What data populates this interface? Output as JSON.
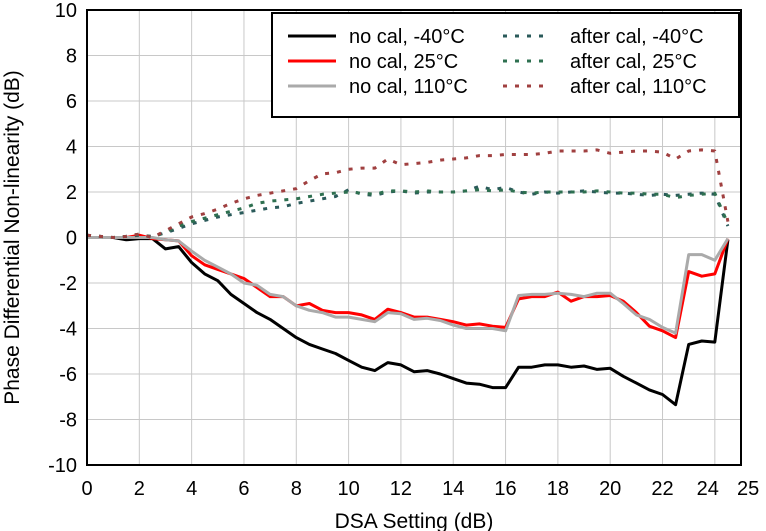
{
  "chart_data": {
    "type": "line",
    "xlabel": "DSA Setting (dB)",
    "ylabel": "Phase Differential Non-linearity (dB)",
    "xlim": [
      0,
      25
    ],
    "ylim": [
      -10,
      10
    ],
    "xticks": [
      0,
      2,
      4,
      6,
      8,
      10,
      12,
      14,
      16,
      18,
      20,
      22,
      24,
      25
    ],
    "xtick_labels": [
      "0",
      "2",
      "4",
      "6",
      "8",
      "10",
      "12",
      "14",
      "16",
      "18",
      "20",
      "22",
      "24",
      "25"
    ],
    "yticks": [
      -10,
      -8,
      -6,
      -4,
      -2,
      0,
      2,
      4,
      6,
      8,
      10
    ],
    "ytick_labels": [
      "-10",
      "-8",
      "-6",
      "-4",
      "-2",
      "0",
      "2",
      "4",
      "6",
      "8",
      "10"
    ],
    "grid": true,
    "legend_position": "top-right",
    "x": [
      0,
      0.5,
      1,
      1.5,
      2,
      2.5,
      3,
      3.5,
      4,
      4.5,
      5,
      5.5,
      6,
      6.5,
      7,
      7.5,
      8,
      8.5,
      9,
      9.5,
      10,
      10.5,
      11,
      11.5,
      12,
      12.5,
      13,
      13.5,
      14,
      14.5,
      15,
      15.5,
      16,
      16.5,
      17,
      17.5,
      18,
      18.5,
      19,
      19.5,
      20,
      20.5,
      21,
      21.5,
      22,
      22.5,
      23,
      23.5,
      24,
      24.5
    ],
    "series": [
      {
        "name": "no cal, -40°C",
        "color": "#000000",
        "style": "solid",
        "values": [
          0,
          0,
          0,
          -0.1,
          -0.05,
          -0.05,
          -0.5,
          -0.4,
          -1.1,
          -1.6,
          -1.9,
          -2.5,
          -2.9,
          -3.3,
          -3.6,
          -4.0,
          -4.4,
          -4.7,
          -4.9,
          -5.1,
          -5.4,
          -5.7,
          -5.85,
          -5.5,
          -5.6,
          -5.9,
          -5.85,
          -6.0,
          -6.2,
          -6.4,
          -6.45,
          -6.6,
          -6.6,
          -5.7,
          -5.7,
          -5.6,
          -5.6,
          -5.7,
          -5.65,
          -5.8,
          -5.75,
          -6.1,
          -6.4,
          -6.7,
          -6.9,
          -7.35,
          -4.7,
          -4.55,
          -4.6,
          -0.1
        ]
      },
      {
        "name": "no cal, 25°C",
        "color": "#ff0000",
        "style": "solid",
        "values": [
          0,
          0,
          0,
          0,
          0.1,
          -0.05,
          -0.1,
          -0.15,
          -0.8,
          -1.2,
          -1.4,
          -1.6,
          -1.8,
          -2.2,
          -2.6,
          -2.6,
          -3.0,
          -2.9,
          -3.2,
          -3.3,
          -3.3,
          -3.4,
          -3.6,
          -3.15,
          -3.3,
          -3.5,
          -3.5,
          -3.6,
          -3.7,
          -3.85,
          -3.8,
          -3.9,
          -3.95,
          -2.7,
          -2.6,
          -2.6,
          -2.4,
          -2.8,
          -2.6,
          -2.6,
          -2.55,
          -2.8,
          -3.3,
          -3.9,
          -4.1,
          -4.4,
          -1.5,
          -1.7,
          -1.6,
          -0.05
        ]
      },
      {
        "name": "no cal, 110°C",
        "color": "#aaaaaa",
        "style": "solid",
        "values": [
          0,
          0,
          0,
          0,
          0,
          0,
          -0.1,
          -0.15,
          -0.6,
          -1.0,
          -1.3,
          -1.6,
          -2.0,
          -2.1,
          -2.5,
          -2.6,
          -3.0,
          -3.2,
          -3.3,
          -3.5,
          -3.5,
          -3.6,
          -3.7,
          -3.3,
          -3.35,
          -3.6,
          -3.55,
          -3.65,
          -3.85,
          -4.0,
          -4.0,
          -4.0,
          -4.1,
          -2.55,
          -2.5,
          -2.5,
          -2.45,
          -2.5,
          -2.6,
          -2.45,
          -2.45,
          -2.9,
          -3.4,
          -3.6,
          -3.95,
          -4.2,
          -0.75,
          -0.75,
          -1.0,
          -0.05
        ]
      },
      {
        "name": "after cal, -40°C",
        "color": "#2a5a5a",
        "style": "dashed",
        "values": [
          0.1,
          0.05,
          0,
          0.05,
          0.1,
          0.05,
          0.2,
          0.4,
          0.6,
          0.75,
          0.9,
          1.0,
          1.1,
          1.2,
          1.3,
          1.35,
          1.5,
          1.6,
          1.7,
          1.8,
          2.1,
          1.9,
          1.85,
          2.0,
          2.05,
          1.95,
          2.0,
          2.0,
          2.0,
          2.05,
          2.25,
          2.1,
          2.2,
          2.0,
          1.9,
          2.0,
          1.95,
          2.0,
          2.05,
          2.0,
          1.95,
          1.95,
          1.9,
          1.85,
          1.9,
          1.85,
          1.9,
          1.95,
          1.9,
          0.5
        ]
      },
      {
        "name": "after cal, 25°C",
        "color": "#2e7050",
        "style": "dashed",
        "values": [
          0.1,
          0.05,
          0,
          0.05,
          0.15,
          0,
          0.25,
          0.5,
          0.7,
          0.85,
          1.0,
          1.15,
          1.3,
          1.5,
          1.6,
          1.65,
          1.7,
          1.8,
          1.9,
          1.95,
          2.0,
          1.95,
          1.9,
          2.05,
          2.05,
          2.0,
          2.05,
          2.0,
          2.0,
          2.05,
          2.1,
          2.05,
          2.1,
          2.0,
          1.95,
          2.0,
          2.0,
          2.0,
          2.0,
          2.05,
          2.0,
          1.95,
          1.95,
          1.9,
          1.9,
          1.75,
          1.85,
          1.9,
          1.95,
          0.6
        ]
      },
      {
        "name": "after cal, 110°C",
        "color": "#a04040",
        "style": "dashed",
        "values": [
          0.1,
          0.05,
          0,
          0.05,
          0.15,
          0,
          0.3,
          0.6,
          0.9,
          1.05,
          1.25,
          1.5,
          1.7,
          1.85,
          1.95,
          2.05,
          2.15,
          2.5,
          2.8,
          2.85,
          3.0,
          3.05,
          3.05,
          3.45,
          3.2,
          3.25,
          3.3,
          3.4,
          3.45,
          3.5,
          3.6,
          3.6,
          3.65,
          3.65,
          3.65,
          3.7,
          3.8,
          3.8,
          3.8,
          3.85,
          3.7,
          3.75,
          3.8,
          3.8,
          3.75,
          3.45,
          3.8,
          3.85,
          3.8,
          0.7
        ]
      }
    ]
  }
}
